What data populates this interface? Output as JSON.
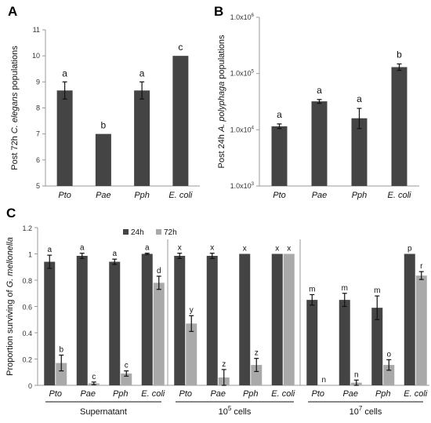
{
  "colors": {
    "dark": "#444444",
    "light": "#a9a9a9",
    "axis": "#999999",
    "text": "#111111"
  },
  "chart_data": [
    {
      "panel": "A",
      "type": "bar",
      "categories": [
        "Pto",
        "Pae",
        "Pph",
        "E. coli"
      ],
      "values": [
        8.67,
        7.0,
        8.67,
        10.0
      ],
      "errors": [
        0.33,
        0,
        0.33,
        0
      ],
      "letters": [
        "a",
        "b",
        "a",
        "c"
      ],
      "ylabel_parts": [
        "Post 72h ",
        "C. elegans",
        " populations"
      ],
      "ylim": [
        5,
        11
      ],
      "yticks": [
        "5",
        "6",
        "7",
        "8",
        "9",
        "10",
        "11"
      ],
      "grid": false
    },
    {
      "panel": "B",
      "type": "bar",
      "scale": "log",
      "categories": [
        "Pto",
        "Pae",
        "Pph",
        "E. coli"
      ],
      "values": [
        11500,
        32000,
        16000,
        130000
      ],
      "err_low": [
        10500,
        29500,
        10500,
        114000
      ],
      "err_high": [
        12700,
        34500,
        24000,
        148000
      ],
      "letters": [
        "a",
        "a",
        "a",
        "b"
      ],
      "ylabel_parts": [
        "Post 24h ",
        "A. polyphaga",
        " populations"
      ],
      "ylim": [
        1000,
        1000000
      ],
      "yticks": [
        {
          "base": "1.0x10",
          "exp": "3"
        },
        {
          "base": "1.0x10",
          "exp": "4"
        },
        {
          "base": "1.0x10",
          "exp": "5"
        },
        {
          "base": "1.0x10",
          "exp": "6"
        }
      ],
      "grid": false
    },
    {
      "panel": "C",
      "type": "bar",
      "legend": [
        "24h",
        "72h"
      ],
      "legend_position": "top",
      "ylabel_parts": [
        "Proportion surviving of ",
        "G. mellonella"
      ],
      "ylim": [
        0,
        1.2
      ],
      "yticks": [
        "0",
        "0.2",
        "0.4",
        "0.6",
        "0.8",
        "1",
        "1.2"
      ],
      "groups": [
        {
          "name": "Supernatant",
          "sup": "",
          "categories": [
            "Pto",
            "Pae",
            "Pph",
            "E. coli"
          ],
          "series": [
            {
              "name": "24h",
              "values": [
                0.94,
                0.985,
                0.94,
                1.0
              ],
              "errors": [
                0.05,
                0.02,
                0.02,
                0.005
              ],
              "letters": [
                "a",
                "a",
                "a",
                "a"
              ]
            },
            {
              "name": "72h",
              "values": [
                0.17,
                0.015,
                0.09,
                0.78
              ],
              "errors": [
                0.06,
                0.01,
                0.02,
                0.05
              ],
              "letters": [
                "b",
                "c",
                "c",
                "d"
              ]
            }
          ]
        },
        {
          "name": "10",
          "sup": "5",
          "suffix": " cells",
          "categories": [
            "Pto",
            "Pae",
            "Pph",
            "E. coli"
          ],
          "series": [
            {
              "name": "24h",
              "values": [
                0.985,
                0.985,
                1.0,
                1.0
              ],
              "errors": [
                0.02,
                0.02,
                0.0,
                0.0
              ],
              "letters": [
                "x",
                "x",
                "x",
                "x"
              ]
            },
            {
              "name": "72h",
              "values": [
                0.47,
                0.06,
                0.155,
                1.0
              ],
              "errors": [
                0.06,
                0.06,
                0.05,
                0.0
              ],
              "letters": [
                "y",
                "z",
                "z",
                "x"
              ]
            }
          ]
        },
        {
          "name": "10",
          "sup": "7",
          "suffix": " cells",
          "categories": [
            "Pto",
            "Pae",
            "Pph",
            "E. coli"
          ],
          "series": [
            {
              "name": "24h",
              "values": [
                0.65,
                0.65,
                0.59,
                1.0
              ],
              "errors": [
                0.04,
                0.05,
                0.09,
                0.0
              ],
              "letters": [
                "m",
                "m",
                "m",
                "p"
              ]
            },
            {
              "name": "72h",
              "values": [
                0.0,
                0.02,
                0.155,
                0.835
              ],
              "errors": [
                0.0,
                0.02,
                0.04,
                0.03
              ],
              "letters": [
                "n",
                "n",
                "o",
                "r"
              ]
            }
          ]
        }
      ]
    }
  ]
}
